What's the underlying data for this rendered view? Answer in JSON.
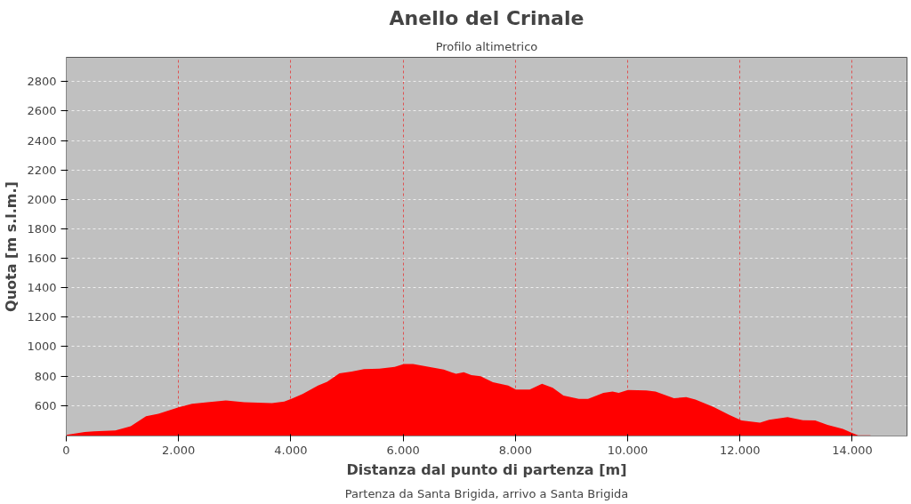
{
  "chart_data": {
    "type": "area",
    "title": "Anello del Crinale",
    "subtitle": "Profilo altimetrico",
    "xlabel": "Distanza dal punto di partenza [m]",
    "ylabel": "Quota [m s.l.m.]",
    "annotations": [
      "Partenza da Santa Brigida, arrivo a Santa Brigida"
    ],
    "x": [
      0,
      328,
      492,
      875,
      1148,
      1421,
      1640,
      2012,
      2241,
      2515,
      2843,
      3171,
      3663,
      3882,
      4007,
      4209,
      4483,
      4647,
      4865,
      5084,
      5303,
      5576,
      5849,
      6013,
      6177,
      6505,
      6724,
      6943,
      7080,
      7216,
      7380,
      7599,
      7872,
      8009,
      8255,
      8474,
      8665,
      8856,
      9130,
      9294,
      9567,
      9731,
      9840,
      10004,
      10332,
      10496,
      10824,
      11043,
      11207,
      11535,
      11809,
      12028,
      12356,
      12520,
      12848,
      13121,
      13340,
      13559,
      13832,
      13985,
      14105,
      14324
    ],
    "series": [
      {
        "color": "#ff0000",
        "values": [
          400,
          420,
          425,
          431,
          460,
          528,
          544,
          589,
          612,
          623,
          634,
          623,
          616,
          627,
          645,
          679,
          735,
          762,
          819,
          830,
          848,
          851,
          862,
          882,
          882,
          860,
          844,
          815,
          826,
          806,
          799,
          758,
          735,
          708,
          708,
          747,
          720,
          668,
          645,
          645,
          686,
          695,
          686,
          706,
          702,
          695,
          650,
          657,
          641,
          589,
          537,
          498,
          483,
          503,
          521,
          500,
          498,
          469,
          442,
          415,
          397,
          397
        ]
      }
    ],
    "xlim": [
      0,
      14975
    ],
    "ylim": [
      393,
      2965
    ],
    "xticks": [
      0,
      {
        "value": 2000,
        "label": "2.000"
      },
      {
        "value": 4000,
        "label": "4.000"
      },
      {
        "value": 6000,
        "label": "6.000"
      },
      {
        "value": 8000,
        "label": "8.000"
      },
      {
        "value": 10000,
        "label": "10.000"
      },
      {
        "value": 12000,
        "label": "12.000"
      },
      {
        "value": 14000,
        "label": "14.000"
      }
    ],
    "yticks": [
      600,
      800,
      1000,
      1200,
      1400,
      1600,
      1800,
      2000,
      2200,
      2400,
      2600,
      2800
    ],
    "grid": true
  }
}
